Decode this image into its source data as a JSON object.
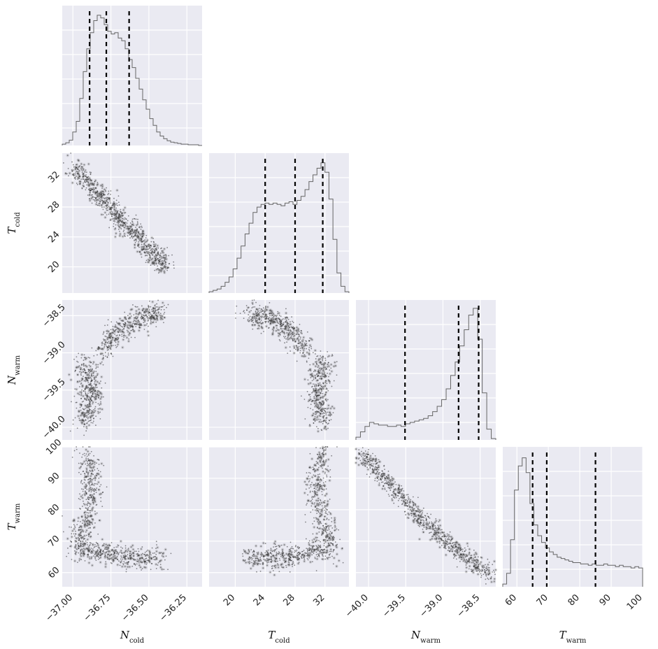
{
  "chart_data": {
    "type": "corner",
    "parameters": [
      {
        "key": "Ncold",
        "label_main": "N",
        "label_sub": "cold",
        "range": [
          -37.07,
          -36.15
        ],
        "ticks": [
          -37.0,
          -36.75,
          -36.5,
          -36.25
        ],
        "tick_labels": [
          "−37.00",
          "−36.75",
          "−36.50",
          "−36.25"
        ],
        "quantiles": [
          -36.89,
          -36.78,
          -36.63
        ]
      },
      {
        "key": "Tcold",
        "label_main": "T",
        "label_sub": "cold",
        "range": [
          16.5,
          35.2
        ],
        "ticks": [
          20,
          24,
          28,
          32
        ],
        "tick_labels": [
          "20",
          "24",
          "28",
          "32"
        ],
        "quantiles": [
          24.0,
          28.0,
          31.7
        ]
      },
      {
        "key": "Nwarm",
        "label_main": "N",
        "label_sub": "warm",
        "range": [
          -40.17,
          -38.29
        ],
        "ticks": [
          -40.0,
          -39.5,
          -39.0,
          -38.5
        ],
        "tick_labels": [
          "−40.0",
          "−39.5",
          "−39.0",
          "−38.5"
        ],
        "quantiles": [
          -39.51,
          -38.79,
          -38.52
        ]
      },
      {
        "key": "Twarm",
        "label_main": "T",
        "label_sub": "warm",
        "range": [
          55.5,
          100
        ],
        "ticks": [
          60,
          70,
          80,
          90,
          100
        ],
        "tick_labels": [
          "60",
          "70",
          "80",
          "90",
          "100"
        ],
        "quantiles": [
          65.0,
          69.5,
          85.0
        ]
      }
    ],
    "histograms": [
      [
        0.01,
        0.02,
        0.04,
        0.1,
        0.18,
        0.35,
        0.55,
        0.72,
        0.84,
        0.93,
        0.97,
        0.95,
        0.9,
        0.85,
        0.83,
        0.84,
        0.8,
        0.78,
        0.72,
        0.64,
        0.58,
        0.5,
        0.42,
        0.34,
        0.27,
        0.2,
        0.15,
        0.1,
        0.07,
        0.05,
        0.035,
        0.025,
        0.02,
        0.015,
        0.01,
        0.01,
        0.005,
        0.005,
        0.005,
        0.0
      ],
      [
        0.01,
        0.02,
        0.03,
        0.05,
        0.08,
        0.12,
        0.18,
        0.26,
        0.35,
        0.44,
        0.52,
        0.6,
        0.64,
        0.66,
        0.67,
        0.66,
        0.67,
        0.66,
        0.65,
        0.67,
        0.68,
        0.66,
        0.69,
        0.72,
        0.77,
        0.83,
        0.88,
        0.93,
        0.97,
        0.9,
        0.7,
        0.4,
        0.15,
        0.05,
        0.01
      ],
      [
        0.02,
        0.06,
        0.1,
        0.13,
        0.12,
        0.11,
        0.11,
        0.1,
        0.1,
        0.11,
        0.1,
        0.12,
        0.13,
        0.14,
        0.15,
        0.16,
        0.18,
        0.21,
        0.25,
        0.3,
        0.38,
        0.48,
        0.58,
        0.7,
        0.82,
        0.93,
        0.98,
        0.75,
        0.35,
        0.08,
        0.01
      ],
      [
        0.02,
        0.1,
        0.35,
        0.72,
        0.9,
        0.96,
        0.85,
        0.62,
        0.46,
        0.38,
        0.33,
        0.29,
        0.26,
        0.24,
        0.22,
        0.21,
        0.2,
        0.19,
        0.18,
        0.18,
        0.17,
        0.17,
        0.16,
        0.17,
        0.16,
        0.16,
        0.17,
        0.16,
        0.16,
        0.15,
        0.16,
        0.15,
        0.15,
        0.14,
        0.15,
        0.14
      ]
    ],
    "pair_relations": "Ncold vs Tcold: anticorrelated; Ncold vs Nwarm: arc; Tcold vs Nwarm: arc; Ncold vs Twarm: arc; Tcold vs Twarm: arc; Nwarm vs Twarm: anticorrelated",
    "grid": true,
    "colors": {
      "panel_bg": "#eaeaf2",
      "grid": "#ffffff",
      "hist": "#666666",
      "quantile": "#000000",
      "points": "#000000"
    }
  }
}
